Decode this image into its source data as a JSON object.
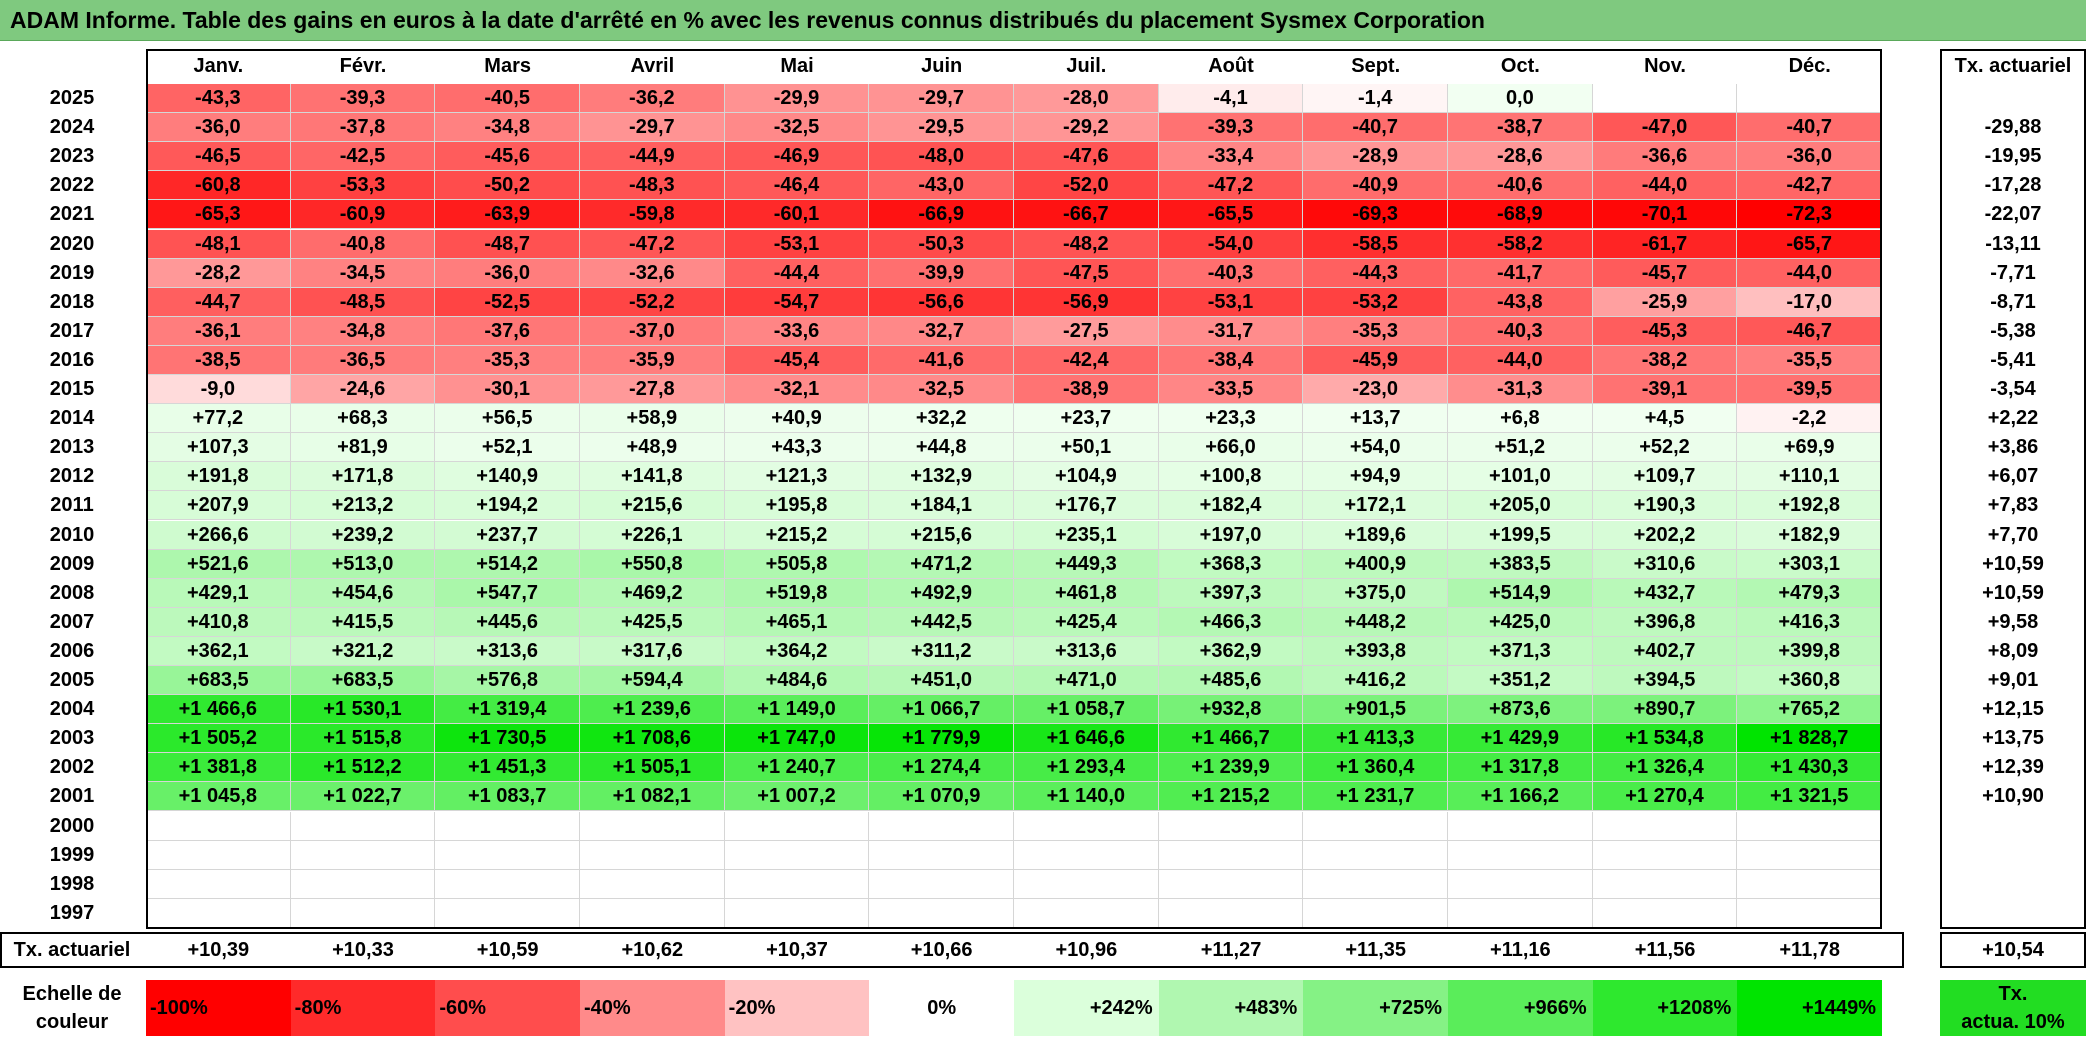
{
  "title": "ADAM Informe. Table des gains en euros à la date d'arrêté en % avec les revenus connus distribués du placement Sysmex Corporation",
  "chart_data": {
    "type": "heatmap",
    "title": "ADAM Informe. Table des gains en euros à la date d'arrêté en % avec les revenus connus distribués du placement Sysmex Corporation",
    "columns": [
      "Janv.",
      "Févr.",
      "Mars",
      "Avril",
      "Mai",
      "Juin",
      "Juil.",
      "Août",
      "Sept.",
      "Oct.",
      "Nov.",
      "Déc."
    ],
    "rate_header": "Tx. actuariel",
    "rows": [
      {
        "year": "2025",
        "values": [
          "-43,3",
          "-39,3",
          "-40,5",
          "-36,2",
          "-29,9",
          "-29,7",
          "-28,0",
          "-4,1",
          "-1,4",
          "0,0",
          "",
          ""
        ],
        "rate": ""
      },
      {
        "year": "2024",
        "values": [
          "-36,0",
          "-37,8",
          "-34,8",
          "-29,7",
          "-32,5",
          "-29,5",
          "-29,2",
          "-39,3",
          "-40,7",
          "-38,7",
          "-47,0",
          "-40,7"
        ],
        "rate": "-29,88"
      },
      {
        "year": "2023",
        "values": [
          "-46,5",
          "-42,5",
          "-45,6",
          "-44,9",
          "-46,9",
          "-48,0",
          "-47,6",
          "-33,4",
          "-28,9",
          "-28,6",
          "-36,6",
          "-36,0"
        ],
        "rate": "-19,95"
      },
      {
        "year": "2022",
        "values": [
          "-60,8",
          "-53,3",
          "-50,2",
          "-48,3",
          "-46,4",
          "-43,0",
          "-52,0",
          "-47,2",
          "-40,9",
          "-40,6",
          "-44,0",
          "-42,7"
        ],
        "rate": "-17,28"
      },
      {
        "year": "2021",
        "values": [
          "-65,3",
          "-60,9",
          "-63,9",
          "-59,8",
          "-60,1",
          "-66,9",
          "-66,7",
          "-65,5",
          "-69,3",
          "-68,9",
          "-70,1",
          "-72,3"
        ],
        "rate": "-22,07"
      },
      {
        "year": "2020",
        "values": [
          "-48,1",
          "-40,8",
          "-48,7",
          "-47,2",
          "-53,1",
          "-50,3",
          "-48,2",
          "-54,0",
          "-58,5",
          "-58,2",
          "-61,7",
          "-65,7"
        ],
        "rate": "-13,11"
      },
      {
        "year": "2019",
        "values": [
          "-28,2",
          "-34,5",
          "-36,0",
          "-32,6",
          "-44,4",
          "-39,9",
          "-47,5",
          "-40,3",
          "-44,3",
          "-41,7",
          "-45,7",
          "-44,0"
        ],
        "rate": "-7,71"
      },
      {
        "year": "2018",
        "values": [
          "-44,7",
          "-48,5",
          "-52,5",
          "-52,2",
          "-54,7",
          "-56,6",
          "-56,9",
          "-53,1",
          "-53,2",
          "-43,8",
          "-25,9",
          "-17,0"
        ],
        "rate": "-8,71"
      },
      {
        "year": "2017",
        "values": [
          "-36,1",
          "-34,8",
          "-37,6",
          "-37,0",
          "-33,6",
          "-32,7",
          "-27,5",
          "-31,7",
          "-35,3",
          "-40,3",
          "-45,3",
          "-46,7"
        ],
        "rate": "-5,38"
      },
      {
        "year": "2016",
        "values": [
          "-38,5",
          "-36,5",
          "-35,3",
          "-35,9",
          "-45,4",
          "-41,6",
          "-42,4",
          "-38,4",
          "-45,9",
          "-44,0",
          "-38,2",
          "-35,5"
        ],
        "rate": "-5,41"
      },
      {
        "year": "2015",
        "values": [
          "-9,0",
          "-24,6",
          "-30,1",
          "-27,8",
          "-32,1",
          "-32,5",
          "-38,9",
          "-33,5",
          "-23,0",
          "-31,3",
          "-39,1",
          "-39,5"
        ],
        "rate": "-3,54"
      },
      {
        "year": "2014",
        "values": [
          "+77,2",
          "+68,3",
          "+56,5",
          "+58,9",
          "+40,9",
          "+32,2",
          "+23,7",
          "+23,3",
          "+13,7",
          "+6,8",
          "+4,5",
          "-2,2"
        ],
        "rate": "+2,22"
      },
      {
        "year": "2013",
        "values": [
          "+107,3",
          "+81,9",
          "+52,1",
          "+48,9",
          "+43,3",
          "+44,8",
          "+50,1",
          "+66,0",
          "+54,0",
          "+51,2",
          "+52,2",
          "+69,9"
        ],
        "rate": "+3,86"
      },
      {
        "year": "2012",
        "values": [
          "+191,8",
          "+171,8",
          "+140,9",
          "+141,8",
          "+121,3",
          "+132,9",
          "+104,9",
          "+100,8",
          "+94,9",
          "+101,0",
          "+109,7",
          "+110,1"
        ],
        "rate": "+6,07"
      },
      {
        "year": "2011",
        "values": [
          "+207,9",
          "+213,2",
          "+194,2",
          "+215,6",
          "+195,8",
          "+184,1",
          "+176,7",
          "+182,4",
          "+172,1",
          "+205,0",
          "+190,3",
          "+192,8"
        ],
        "rate": "+7,83"
      },
      {
        "year": "2010",
        "values": [
          "+266,6",
          "+239,2",
          "+237,7",
          "+226,1",
          "+215,2",
          "+215,6",
          "+235,1",
          "+197,0",
          "+189,6",
          "+199,5",
          "+202,2",
          "+182,9"
        ],
        "rate": "+7,70"
      },
      {
        "year": "2009",
        "values": [
          "+521,6",
          "+513,0",
          "+514,2",
          "+550,8",
          "+505,8",
          "+471,2",
          "+449,3",
          "+368,3",
          "+400,9",
          "+383,5",
          "+310,6",
          "+303,1"
        ],
        "rate": "+10,59"
      },
      {
        "year": "2008",
        "values": [
          "+429,1",
          "+454,6",
          "+547,7",
          "+469,2",
          "+519,8",
          "+492,9",
          "+461,8",
          "+397,3",
          "+375,0",
          "+514,9",
          "+432,7",
          "+479,3"
        ],
        "rate": "+10,59"
      },
      {
        "year": "2007",
        "values": [
          "+410,8",
          "+415,5",
          "+445,6",
          "+425,5",
          "+465,1",
          "+442,5",
          "+425,4",
          "+466,3",
          "+448,2",
          "+425,0",
          "+396,8",
          "+416,3"
        ],
        "rate": "+9,58"
      },
      {
        "year": "2006",
        "values": [
          "+362,1",
          "+321,2",
          "+313,6",
          "+317,6",
          "+364,2",
          "+311,2",
          "+313,6",
          "+362,9",
          "+393,8",
          "+371,3",
          "+402,7",
          "+399,8"
        ],
        "rate": "+8,09"
      },
      {
        "year": "2005",
        "values": [
          "+683,5",
          "+683,5",
          "+576,8",
          "+594,4",
          "+484,6",
          "+451,0",
          "+471,0",
          "+485,6",
          "+416,2",
          "+351,2",
          "+394,5",
          "+360,8"
        ],
        "rate": "+9,01"
      },
      {
        "year": "2004",
        "values": [
          "+1 466,6",
          "+1 530,1",
          "+1 319,4",
          "+1 239,6",
          "+1 149,0",
          "+1 066,7",
          "+1 058,7",
          "+932,8",
          "+901,5",
          "+873,6",
          "+890,7",
          "+765,2"
        ],
        "rate": "+12,15"
      },
      {
        "year": "2003",
        "values": [
          "+1 505,2",
          "+1 515,8",
          "+1 730,5",
          "+1 708,6",
          "+1 747,0",
          "+1 779,9",
          "+1 646,6",
          "+1 466,7",
          "+1 413,3",
          "+1 429,9",
          "+1 534,8",
          "+1 828,7"
        ],
        "rate": "+13,75"
      },
      {
        "year": "2002",
        "values": [
          "+1 381,8",
          "+1 512,2",
          "+1 451,3",
          "+1 505,1",
          "+1 240,7",
          "+1 274,4",
          "+1 293,4",
          "+1 239,9",
          "+1 360,4",
          "+1 317,8",
          "+1 326,4",
          "+1 430,3"
        ],
        "rate": "+12,39"
      },
      {
        "year": "2001",
        "values": [
          "+1 045,8",
          "+1 022,7",
          "+1 083,7",
          "+1 082,1",
          "+1 007,2",
          "+1 070,9",
          "+1 140,0",
          "+1 215,2",
          "+1 231,7",
          "+1 166,2",
          "+1 270,4",
          "+1 321,5"
        ],
        "rate": "+10,90"
      },
      {
        "year": "2000",
        "values": [
          "",
          "",
          "",
          "",
          "",
          "",
          "",
          "",
          "",
          "",
          "",
          ""
        ],
        "rate": ""
      },
      {
        "year": "1999",
        "values": [
          "",
          "",
          "",
          "",
          "",
          "",
          "",
          "",
          "",
          "",
          "",
          ""
        ],
        "rate": ""
      },
      {
        "year": "1998",
        "values": [
          "",
          "",
          "",
          "",
          "",
          "",
          "",
          "",
          "",
          "",
          "",
          ""
        ],
        "rate": ""
      },
      {
        "year": "1997",
        "values": [
          "",
          "",
          "",
          "",
          "",
          "",
          "",
          "",
          "",
          "",
          "",
          ""
        ],
        "rate": ""
      }
    ],
    "footer": {
      "label": "Tx. actuariel",
      "values": [
        "+10,39",
        "+10,33",
        "+10,59",
        "+10,62",
        "+10,37",
        "+10,66",
        "+10,96",
        "+11,27",
        "+11,35",
        "+11,16",
        "+11,56",
        "+11,78"
      ],
      "rate": "+10,54"
    },
    "scale": {
      "label_line1": "Echelle de",
      "label_line2": "couleur",
      "items": [
        {
          "label": "-100%",
          "color": "#ff0000",
          "align": "left"
        },
        {
          "label": "-80%",
          "color": "#ff2a2a",
          "align": "left"
        },
        {
          "label": "-60%",
          "color": "#ff4d4d",
          "align": "left"
        },
        {
          "label": "-40%",
          "color": "#ff8a8a",
          "align": "left"
        },
        {
          "label": "-20%",
          "color": "#ffc2c2",
          "align": "left"
        },
        {
          "label": "0%",
          "color": "#ffffff",
          "align": "center"
        },
        {
          "label": "+242%",
          "color": "#dbffdb",
          "align": "right"
        },
        {
          "label": "+483%",
          "color": "#b0f7b0",
          "align": "right"
        },
        {
          "label": "+725%",
          "color": "#85f285",
          "align": "right"
        },
        {
          "label": "+966%",
          "color": "#5aed5a",
          "align": "right"
        },
        {
          "label": "+1208%",
          "color": "#2ee82e",
          "align": "right"
        },
        {
          "label": "+1449%",
          "color": "#00e400",
          "align": "right"
        }
      ],
      "rate_line1": "Tx.",
      "rate_line2": "actua. 10%",
      "rate_color": "#22dd22"
    }
  }
}
